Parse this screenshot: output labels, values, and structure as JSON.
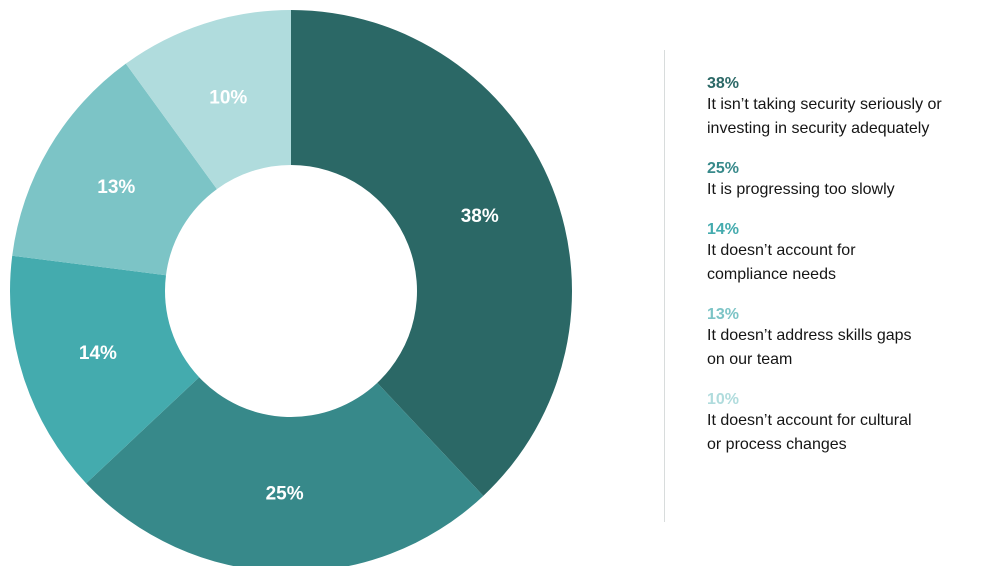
{
  "chart_data": {
    "type": "pie",
    "donut": true,
    "slices": [
      {
        "label": "It isn’t taking security seriously or\ninvesting in security adequately",
        "value": 38,
        "value_label": "38%",
        "color": "#2b6866"
      },
      {
        "label": "It is progressing too slowly",
        "value": 25,
        "value_label": "25%",
        "color": "#37898a"
      },
      {
        "label": "It doesn’t account for\ncompliance needs",
        "value": 14,
        "value_label": "14%",
        "color": "#44abae"
      },
      {
        "label": "It doesn’t address skills gaps\non our team",
        "value": 13,
        "value_label": "13%",
        "color": "#7cc4c6"
      },
      {
        "label": "It doesn’t account for cultural\nor process changes",
        "value": 10,
        "value_label": "10%",
        "color": "#b0dcdd"
      }
    ],
    "legend_position": "right"
  },
  "colors": {
    "legend_pct": [
      "#2b6866",
      "#37898a",
      "#44abae",
      "#7cc4c6",
      "#b0dcdd"
    ]
  }
}
